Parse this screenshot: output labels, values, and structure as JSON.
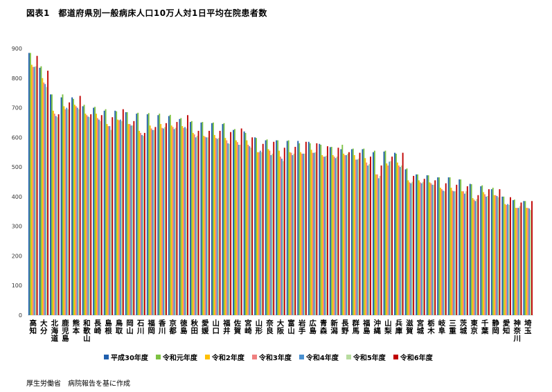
{
  "title": "図表1　都道府県別一般病床人口10万人対1日平均在院患者数",
  "source": "厚生労働省　病院報告を基に作成",
  "colors": [
    "#1f5fad",
    "#7dc242",
    "#ffc000",
    "#f08080",
    "#4a90d0",
    "#b8dca0",
    "#c00000"
  ],
  "chart_data": {
    "type": "bar",
    "ylim": [
      0,
      900
    ],
    "yticks": [
      0,
      100,
      200,
      300,
      400,
      500,
      600,
      700,
      800,
      900
    ],
    "grid": false,
    "legend_position": "bottom",
    "categories": [
      "高知",
      "大分",
      "北海道",
      "鹿児島",
      "熊本",
      "和歌山",
      "長崎",
      "島根",
      "鳥取",
      "岡山",
      "石川",
      "福岡",
      "香川",
      "京都",
      "徳島",
      "秋田",
      "愛媛",
      "山口",
      "福井",
      "佐賀",
      "宮崎",
      "山形",
      "奈良",
      "大阪",
      "富山",
      "岩手",
      "広島",
      "青森",
      "新潟",
      "長野",
      "群馬",
      "福島",
      "沖縄",
      "山梨",
      "兵庫",
      "滋賀",
      "宮城",
      "栃木",
      "岐阜",
      "三重",
      "茨城",
      "東京",
      "千葉",
      "静岡",
      "愛知",
      "神奈川",
      "埼玉"
    ],
    "series": [
      {
        "name": "平成30年度",
        "values": [
          885,
          835,
          745,
          735,
          735,
          705,
          700,
          690,
          690,
          685,
          680,
          678,
          675,
          672,
          662,
          652,
          650,
          648,
          645,
          625,
          620,
          600,
          590,
          590,
          588,
          588,
          585,
          578,
          567,
          560,
          560,
          560,
          550,
          552,
          548,
          492,
          475,
          472,
          465,
          465,
          458,
          443,
          435,
          425,
          400,
          388,
          385
        ]
      },
      {
        "name": "令和元年度",
        "values": [
          885,
          840,
          745,
          745,
          730,
          710,
          703,
          695,
          688,
          685,
          683,
          682,
          680,
          676,
          665,
          655,
          652,
          650,
          648,
          628,
          615,
          598,
          593,
          590,
          590,
          580,
          580,
          575,
          568,
          575,
          562,
          562,
          555,
          555,
          545,
          495,
          475,
          472,
          465,
          465,
          458,
          442,
          438,
          430,
          400,
          390,
          385
        ]
      },
      {
        "name": "令和2年度",
        "values": [
          845,
          800,
          690,
          705,
          710,
          680,
          680,
          645,
          660,
          645,
          622,
          640,
          645,
          640,
          638,
          615,
          605,
          608,
          598,
          590,
          590,
          550,
          560,
          555,
          550,
          550,
          558,
          540,
          540,
          545,
          540,
          530,
          475,
          512,
          515,
          455,
          455,
          448,
          430,
          430,
          418,
          395,
          415,
          405,
          375,
          362,
          362
        ]
      },
      {
        "name": "令和3年度",
        "values": [
          838,
          785,
          680,
          695,
          705,
          675,
          665,
          638,
          658,
          645,
          615,
          630,
          632,
          635,
          632,
          610,
          602,
          598,
          590,
          584,
          575,
          550,
          555,
          535,
          548,
          545,
          548,
          535,
          535,
          540,
          525,
          515,
          475,
          505,
          505,
          448,
          448,
          445,
          425,
          420,
          418,
          390,
          408,
          405,
          372,
          362,
          362
        ]
      },
      {
        "name": "令和4年度",
        "values": [
          838,
          780,
          672,
          700,
          700,
          670,
          660,
          638,
          660,
          640,
          608,
          625,
          630,
          628,
          635,
          600,
          600,
          595,
          580,
          575,
          570,
          555,
          540,
          528,
          540,
          545,
          548,
          535,
          530,
          540,
          525,
          505,
          462,
          518,
          500,
          445,
          445,
          440,
          420,
          418,
          410,
          385,
          400,
          402,
          375,
          362,
          360
        ]
      },
      {
        "name": "令和5年度",
        "values": [
          840,
          770,
          668,
          695,
          695,
          668,
          655,
          625,
          655,
          640,
          605,
          625,
          635,
          632,
          630,
          605,
          600,
          598,
          578,
          575,
          565,
          550,
          545,
          520,
          545,
          545,
          550,
          538,
          535,
          545,
          528,
          510,
          470,
          520,
          505,
          450,
          450,
          440,
          418,
          418,
          418,
          392,
          402,
          398,
          372,
          368,
          355
        ]
      },
      {
        "name": "令和6年度",
        "values": [
          875,
          825,
          678,
          718,
          740,
          678,
          675,
          668,
          695,
          655,
          615,
          635,
          648,
          652,
          675,
          622,
          622,
          622,
          618,
          630,
          600,
          578,
          585,
          565,
          568,
          585,
          580,
          570,
          565,
          550,
          548,
          535,
          505,
          535,
          548,
          470,
          460,
          455,
          445,
          440,
          435,
          405,
          425,
          425,
          398,
          380,
          385
        ]
      }
    ]
  }
}
